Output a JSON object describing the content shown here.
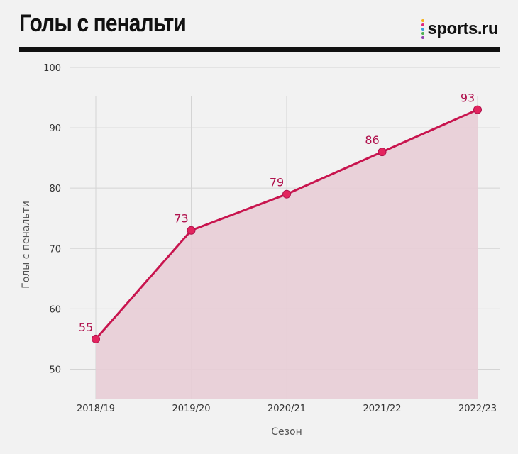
{
  "header": {
    "title": "Голы с пенальти",
    "brand": "sports.ru",
    "brand_dot_colors": [
      "#f6b21b",
      "#e0267d",
      "#3a9bd9",
      "#4caf50",
      "#8e44ad"
    ]
  },
  "colors": {
    "line": "#c8144e",
    "area": "#e8cdd6",
    "point": "#e3245e",
    "grid": "#d4d4d4",
    "label": "#b0124d"
  },
  "chart_data": {
    "type": "area",
    "title": "Голы с пенальти",
    "xlabel": "Сезон",
    "ylabel": "Голы с пенальти",
    "categories": [
      "2018/19",
      "2019/20",
      "2020/21",
      "2021/22",
      "2022/23"
    ],
    "values": [
      55,
      73,
      79,
      86,
      93
    ],
    "ylim": [
      45,
      100
    ],
    "yticks": [
      50,
      60,
      70,
      80,
      90,
      100
    ],
    "grid": true,
    "legend": "none",
    "data_labels": true
  }
}
